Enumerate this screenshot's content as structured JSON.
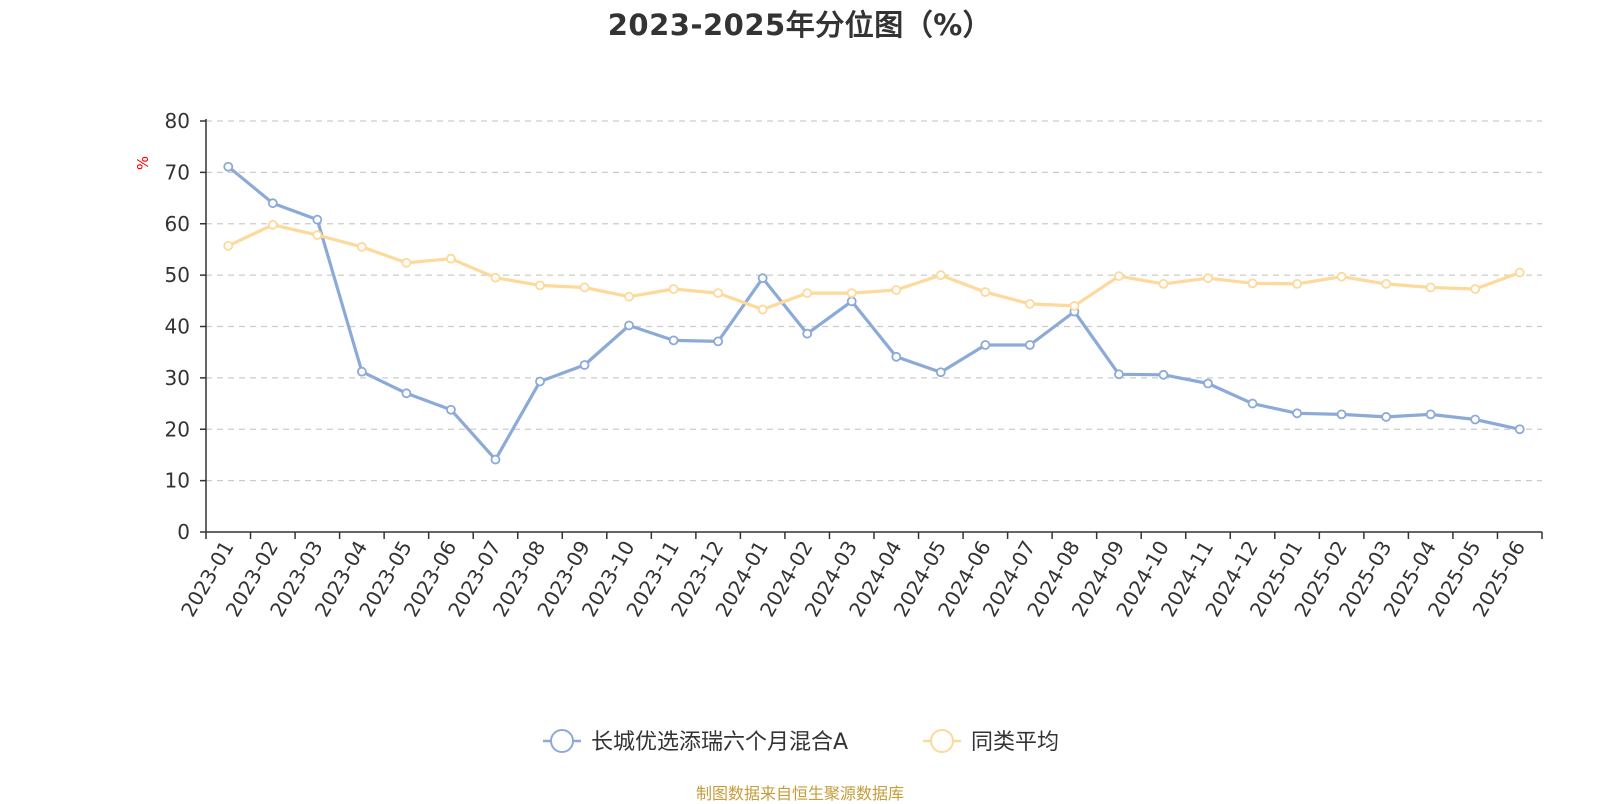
{
  "title": "2023-2025年分位图（%）",
  "source": "制图数据来自恒生聚源数据库",
  "colors": {
    "series1": "#8caad8",
    "series2": "#fdd99b",
    "unit": "#ff0000",
    "axis": "#333333",
    "grid": "#cccccc",
    "source": "#c59d3a"
  },
  "chart_data": {
    "type": "line",
    "title": "2023-2025年分位图（%）",
    "ylabel": "%",
    "ylim": [
      0,
      80
    ],
    "yticks": [
      0,
      10,
      20,
      30,
      40,
      50,
      60,
      70,
      80
    ],
    "grid": true,
    "legend_position": "bottom-center",
    "categories": [
      "2023-01",
      "2023-02",
      "2023-03",
      "2023-04",
      "2023-05",
      "2023-06",
      "2023-07",
      "2023-08",
      "2023-09",
      "2023-10",
      "2023-11",
      "2023-12",
      "2024-01",
      "2024-02",
      "2024-03",
      "2024-04",
      "2024-05",
      "2024-06",
      "2024-07",
      "2024-08",
      "2024-09",
      "2024-10",
      "2024-11",
      "2024-12",
      "2025-01",
      "2025-02",
      "2025-03",
      "2025-04",
      "2025-05",
      "2025-06"
    ],
    "series": [
      {
        "name": "长城优选添瑞六个月混合A",
        "color": "#8caad8",
        "values": [
          71.1,
          64.0,
          60.8,
          31.2,
          27.0,
          23.8,
          14.1,
          29.3,
          32.5,
          40.2,
          37.3,
          37.1,
          49.4,
          38.6,
          44.9,
          34.1,
          31.1,
          36.4,
          36.4,
          42.9,
          30.7,
          30.6,
          28.9,
          25.0,
          23.1,
          22.9,
          22.4,
          22.9,
          21.9,
          20.0
        ]
      },
      {
        "name": "同类平均",
        "color": "#fdd99b",
        "values": [
          55.7,
          59.8,
          57.8,
          55.5,
          52.4,
          53.2,
          49.5,
          48.0,
          47.6,
          45.8,
          47.3,
          46.5,
          43.3,
          46.5,
          46.5,
          47.1,
          50.0,
          46.7,
          44.4,
          44.0,
          49.8,
          48.3,
          49.4,
          48.4,
          48.3,
          49.7,
          48.3,
          47.6,
          47.3,
          50.5
        ]
      }
    ]
  }
}
